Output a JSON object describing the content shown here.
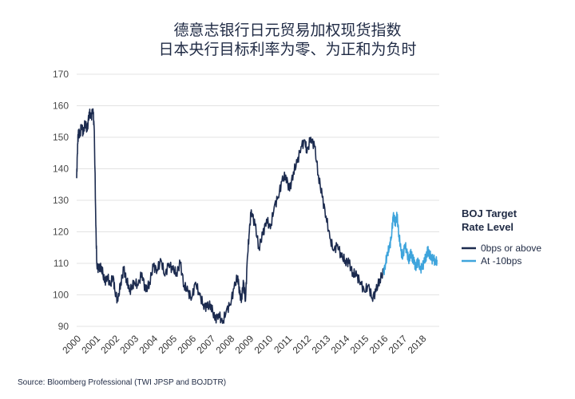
{
  "chart_data": {
    "type": "line",
    "title_lines": [
      "德意志银行日元贸易加权现货指数",
      "日本央行目标利率为零、为正和为负时"
    ],
    "ylim": [
      90,
      170
    ],
    "yticks": [
      90,
      100,
      110,
      120,
      130,
      140,
      150,
      160,
      170
    ],
    "xlim": [
      2000,
      2018.9
    ],
    "xticks": [
      "2000",
      "2001",
      "2002",
      "2003",
      "2004",
      "2005",
      "2006",
      "2007",
      "2008",
      "2009",
      "2010",
      "2011",
      "2012",
      "2013",
      "2014",
      "2015",
      "2016",
      "2017",
      "2018"
    ],
    "grid": "horizontal",
    "legend": {
      "title_lines": [
        "BOJ Target",
        "Rate Level"
      ],
      "position": "right"
    },
    "series": [
      {
        "name": "0bps or above",
        "color": "#1c2b4f",
        "x": [
          2000.0,
          2000.05,
          2000.1,
          2000.15,
          2000.25,
          2000.35,
          2000.45,
          2000.55,
          2000.65,
          2000.75,
          2000.85,
          2000.92,
          2001.0,
          2001.05,
          2001.15,
          2001.3,
          2001.45,
          2001.6,
          2001.75,
          2001.9,
          2002.0,
          2002.15,
          2002.3,
          2002.45,
          2002.6,
          2002.75,
          2002.9,
          2003.0,
          2003.2,
          2003.4,
          2003.6,
          2003.8,
          2004.0,
          2004.2,
          2004.4,
          2004.6,
          2004.8,
          2005.0,
          2005.2,
          2005.4,
          2005.6,
          2005.8,
          2006.0,
          2006.2,
          2006.4,
          2006.6,
          2006.8,
          2007.0,
          2007.2,
          2007.4,
          2007.6,
          2007.8,
          2008.0,
          2008.2,
          2008.4,
          2008.5,
          2008.6,
          2008.7,
          2008.8,
          2008.9,
          2009.0,
          2009.1,
          2009.3,
          2009.5,
          2009.7,
          2009.9,
          2010.1,
          2010.3,
          2010.5,
          2010.7,
          2010.9,
          2011.1,
          2011.3,
          2011.5,
          2011.7,
          2011.9,
          2012.0,
          2012.2,
          2012.4,
          2012.6,
          2012.8,
          2013.0,
          2013.2,
          2013.4,
          2013.6,
          2013.8,
          2014.0,
          2014.2,
          2014.4,
          2014.6,
          2014.8,
          2015.0,
          2015.2,
          2015.4,
          2015.6,
          2015.8,
          2016.0
        ],
        "y": [
          137,
          148,
          152,
          150,
          154,
          151,
          155,
          152,
          158,
          156,
          159,
          152,
          122,
          110,
          108,
          109,
          104,
          106,
          103,
          106,
          101,
          98,
          104,
          108,
          105,
          101,
          103,
          104,
          103,
          107,
          101,
          104,
          109,
          108,
          111,
          106,
          110,
          108,
          107,
          110,
          103,
          101,
          99,
          104,
          100,
          97,
          96,
          97,
          92,
          94,
          91,
          95,
          97,
          102,
          106,
          100,
          99,
          104,
          98,
          112,
          120,
          127,
          122,
          115,
          119,
          124,
          121,
          128,
          131,
          136,
          138,
          133,
          139,
          142,
          147,
          149,
          145,
          150,
          147,
          138,
          131,
          125,
          118,
          114,
          116,
          112,
          111,
          110,
          107,
          106,
          104,
          101,
          103,
          99,
          101,
          105,
          107
        ]
      },
      {
        "name": "At -10bps",
        "color": "#3ea4dc",
        "x": [
          2016.0,
          2016.1,
          2016.2,
          2016.3,
          2016.4,
          2016.5,
          2016.6,
          2016.7,
          2016.8,
          2016.9,
          2017.0,
          2017.1,
          2017.2,
          2017.3,
          2017.4,
          2017.5,
          2017.6,
          2017.7,
          2017.8,
          2017.9,
          2018.0,
          2018.1,
          2018.2,
          2018.3,
          2018.4,
          2018.5,
          2018.6,
          2018.7,
          2018.8
        ],
        "y": [
          107,
          110,
          113,
          115,
          118,
          125,
          123,
          125,
          119,
          114,
          112,
          116,
          114,
          111,
          113,
          112,
          110,
          109,
          111,
          108,
          109,
          110,
          112,
          114,
          113,
          111,
          112,
          110,
          111
        ]
      }
    ],
    "source": "Source: Bloomberg Professional (TWI JPSP and BOJDTR)"
  }
}
